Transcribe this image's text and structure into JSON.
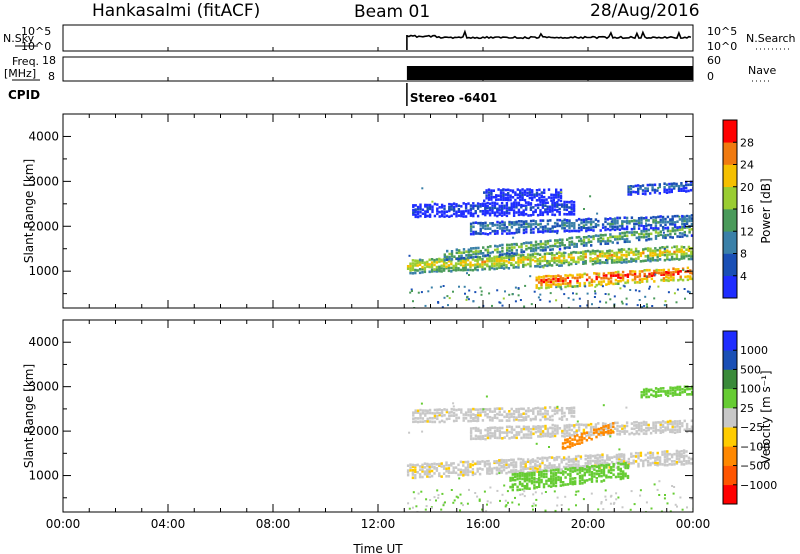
{
  "header": {
    "title_station": "Hankasalmi (fitACF)",
    "title_beam": "Beam 01",
    "title_date": "28/Aug/2016"
  },
  "summary": {
    "nsky_label": "N.Sky",
    "nsky_tick_hi": "10^5",
    "nsky_tick_lo": "10^0",
    "nsearch_label": "N.Search",
    "freq_label": "Freq.",
    "freq_unit": "[MHz]",
    "freq_tick_hi": "18",
    "freq_tick_lo": "8",
    "nave_label": "Nave",
    "nave_tick_hi": "60",
    "nave_tick_lo": "0",
    "cpid_label": "CPID",
    "cpid_value": "Stereo -6401"
  },
  "chart_data": [
    {
      "type": "heatmap",
      "title": "",
      "parameter": "Power",
      "xlabel": "",
      "ylabel": "Slant Range [km]",
      "xlim": [
        0,
        24
      ],
      "ylim": [
        180,
        4500
      ],
      "yticks": [
        1000,
        2000,
        3000,
        4000
      ],
      "colorbar": {
        "label": "Power [dB]",
        "ticks": [
          "4",
          "8",
          "12",
          "16",
          "20",
          "24",
          "28"
        ],
        "range": [
          0,
          32
        ],
        "colors": [
          "#1f2dff",
          "#1a4fb5",
          "#3a80a8",
          "#4a9a5a",
          "#9acd32",
          "#f5c000",
          "#f07a10",
          "#ff0000"
        ]
      },
      "data_start_ut": 13.1,
      "echo_bands": [
        {
          "range_km": 1150,
          "width_km": 160,
          "t_start": 13.1,
          "t_end": 24,
          "level_db": 22,
          "slope_km_per_h": 30
        },
        {
          "range_km": 1400,
          "width_km": 130,
          "t_start": 14.5,
          "t_end": 24,
          "level_db": 17,
          "slope_km_per_h": 60
        },
        {
          "range_km": 800,
          "width_km": 150,
          "t_start": 18.0,
          "t_end": 24,
          "level_db": 29,
          "slope_km_per_h": 35
        },
        {
          "range_km": 2000,
          "width_km": 150,
          "t_start": 15.5,
          "t_end": 24,
          "level_db": 12,
          "slope_km_per_h": 20
        },
        {
          "range_km": 2400,
          "width_km": 160,
          "t_start": 13.3,
          "t_end": 19.5,
          "level_db": 6,
          "slope_km_per_h": 10
        },
        {
          "range_km": 2750,
          "width_km": 140,
          "t_start": 16.0,
          "t_end": 19.0,
          "level_db": 5,
          "slope_km_per_h": 0
        },
        {
          "range_km": 2850,
          "width_km": 120,
          "t_start": 21.5,
          "t_end": 24,
          "level_db": 10,
          "slope_km_per_h": 40
        }
      ]
    },
    {
      "type": "heatmap",
      "title": "",
      "parameter": "Velocity",
      "xlabel": "Time UT",
      "ylabel": "Slant Range [km]",
      "xlim": [
        0,
        24
      ],
      "ylim": [
        180,
        4500
      ],
      "xticks": [
        "00:00",
        "04:00",
        "08:00",
        "12:00",
        "16:00",
        "20:00",
        "00:00"
      ],
      "yticks": [
        1000,
        2000,
        3000,
        4000
      ],
      "colorbar": {
        "label": "Velocity [m s⁻¹]",
        "ticks": [
          "1000",
          "500",
          "100",
          "25",
          "−25",
          "−100",
          "−500",
          "−1000"
        ],
        "colors": [
          "#1f2dff",
          "#1a4fb5",
          "#3a8a3a",
          "#66cc33",
          "#c8c8c8",
          "#ffcc00",
          "#ff8800",
          "#ff5500",
          "#ff0000"
        ]
      },
      "data_start_ut": 13.1,
      "echo_bands": [
        {
          "range_km": 1150,
          "width_km": 170,
          "t_start": 13.1,
          "t_end": 24,
          "category": "ground-scatter",
          "slope_km_per_h": 30
        },
        {
          "range_km": 900,
          "width_km": 200,
          "t_start": 17.0,
          "t_end": 21.5,
          "category": "+100",
          "slope_km_per_h": 60
        },
        {
          "range_km": 2000,
          "width_km": 150,
          "t_start": 15.5,
          "t_end": 24,
          "category": "ground-scatter",
          "slope_km_per_h": 20
        },
        {
          "range_km": 2400,
          "width_km": 160,
          "t_start": 13.3,
          "t_end": 19.5,
          "category": "ground-scatter",
          "slope_km_per_h": 10
        },
        {
          "range_km": 1750,
          "width_km": 120,
          "t_start": 19.0,
          "t_end": 21.0,
          "category": "-100",
          "slope_km_per_h": 200
        },
        {
          "range_km": 2900,
          "width_km": 110,
          "t_start": 22.0,
          "t_end": 24,
          "category": "+100",
          "slope_km_per_h": 40
        }
      ]
    }
  ]
}
